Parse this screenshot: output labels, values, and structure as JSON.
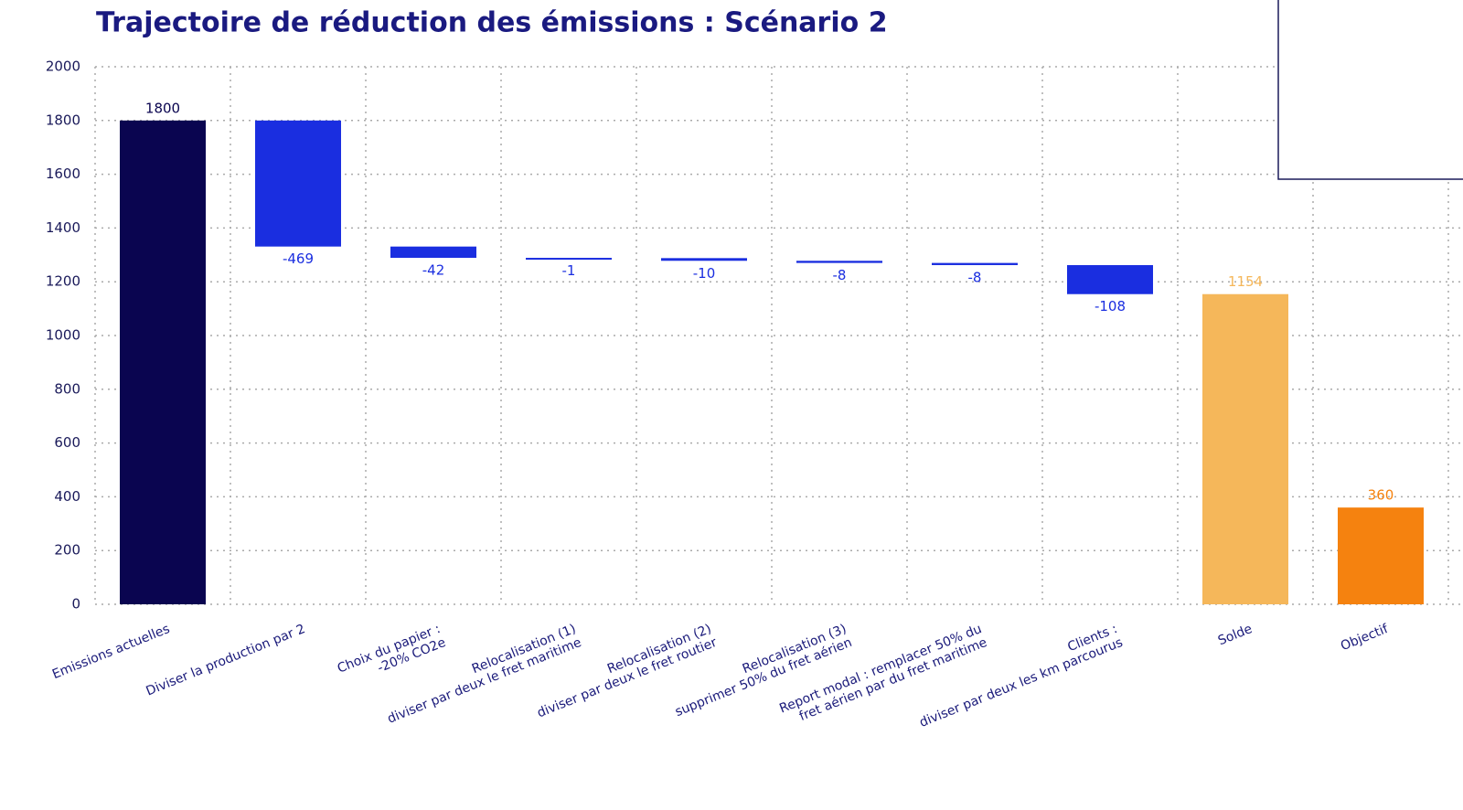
{
  "chart_data": {
    "type": "waterfall",
    "title": "Trajectoire de réduction des émissions : Scénario 2",
    "categories": [
      "Emissions actuelles",
      "Diviser la production par 2",
      "Choix du papier :\n-20% CO2e",
      "Relocalisation (1)\ndiviser par deux le fret maritime",
      "Relocalisation (2)\ndiviser par deux le fret routier",
      "Relocalisation (3)\nsupprimer 50% du fret aérien",
      "Report modal : remplacer 50% du\nfret aérien par du fret maritime",
      "Clients :\ndiviser par deux les km parcourus",
      "Solde",
      "Objectif"
    ],
    "values": [
      1800,
      -469,
      -42,
      -1,
      -10,
      -8,
      -8,
      -108,
      1154,
      360
    ],
    "measures": [
      "absolute",
      "relative",
      "relative",
      "relative",
      "relative",
      "relative",
      "relative",
      "relative",
      "absolute",
      "absolute"
    ],
    "colors": [
      "#0a0550",
      "#1a2ee0",
      "#1a2ee0",
      "#1a2ee0",
      "#1a2ee0",
      "#1a2ee0",
      "#1a2ee0",
      "#1a2ee0",
      "#f5b75a",
      "#f5820f"
    ],
    "ylim": [
      0,
      2000
    ],
    "yticks": [
      0,
      200,
      400,
      600,
      800,
      1000,
      1200,
      1400,
      1600,
      1800,
      2000
    ],
    "grid": true
  }
}
